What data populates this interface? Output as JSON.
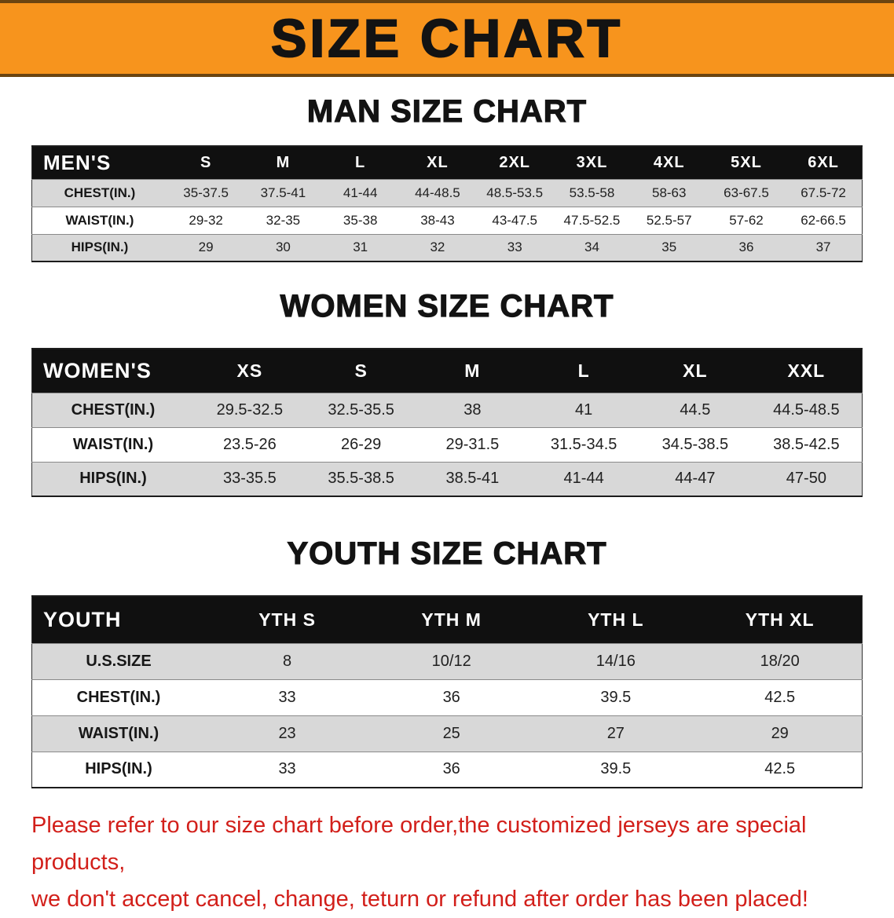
{
  "banner": {
    "title": "SIZE CHART"
  },
  "sections": [
    {
      "heading": "MAN SIZE CHART",
      "table": {
        "header": [
          "MEN'S",
          "S",
          "M",
          "L",
          "XL",
          "2XL",
          "3XL",
          "4XL",
          "5XL",
          "6XL"
        ],
        "rows": [
          [
            "CHEST(IN.)",
            "35-37.5",
            "37.5-41",
            "41-44",
            "44-48.5",
            "48.5-53.5",
            "53.5-58",
            "58-63",
            "63-67.5",
            "67.5-72"
          ],
          [
            "WAIST(IN.)",
            "29-32",
            "32-35",
            "35-38",
            "38-43",
            "43-47.5",
            "47.5-52.5",
            "52.5-57",
            "57-62",
            "62-66.5"
          ],
          [
            "HIPS(IN.)",
            "29",
            "30",
            "31",
            "32",
            "33",
            "34",
            "35",
            "36",
            "37"
          ]
        ]
      }
    },
    {
      "heading": "WOMEN SIZE CHART",
      "table": {
        "header": [
          "WOMEN'S",
          "XS",
          "S",
          "M",
          "L",
          "XL",
          "XXL"
        ],
        "rows": [
          [
            "CHEST(IN.)",
            "29.5-32.5",
            "32.5-35.5",
            "38",
            "41",
            "44.5",
            "44.5-48.5"
          ],
          [
            "WAIST(IN.)",
            "23.5-26",
            "26-29",
            "29-31.5",
            "31.5-34.5",
            "34.5-38.5",
            "38.5-42.5"
          ],
          [
            "HIPS(IN.)",
            "33-35.5",
            "35.5-38.5",
            "38.5-41",
            "41-44",
            "44-47",
            "47-50"
          ]
        ]
      }
    },
    {
      "heading": "YOUTH SIZE CHART",
      "table": {
        "header": [
          "YOUTH",
          "YTH S",
          "YTH M",
          "YTH L",
          "YTH XL"
        ],
        "rows": [
          [
            "U.S.SIZE",
            "8",
            "10/12",
            "14/16",
            "18/20"
          ],
          [
            "CHEST(IN.)",
            "33",
            "36",
            "39.5",
            "42.5"
          ],
          [
            "WAIST(IN.)",
            "23",
            "25",
            "27",
            "29"
          ],
          [
            "HIPS(IN.)",
            "33",
            "36",
            "39.5",
            "42.5"
          ]
        ]
      }
    }
  ],
  "disclaimer": {
    "line1": "Please refer to our size chart before order,the customized jerseys are special products,",
    "line2": "we don't accept cancel, change, teturn or refund after order has been placed!"
  },
  "colors": {
    "banner_orange": "#f7941d",
    "banner_edge": "#6b4410",
    "header_black": "#101010",
    "row_gray": "#d8d8d8",
    "disclaimer_red": "#d21f1a"
  }
}
